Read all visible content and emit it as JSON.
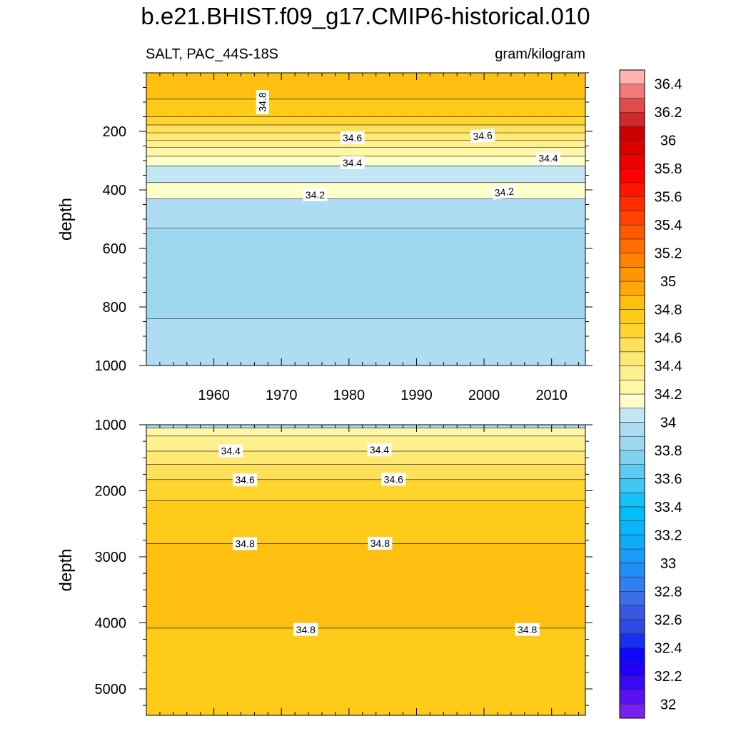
{
  "chart_data": {
    "type": "heatmap",
    "title": "b.e21.BHIST.f09_g17.CMIP6-historical.010",
    "left_subtitle": "SALT, PAC_44S-18S",
    "right_subtitle": "gram/kilogram",
    "ylabel": "depth",
    "xlim": [
      1950,
      2015
    ],
    "x_ticks": [
      1960,
      1970,
      1980,
      1990,
      2000,
      2010
    ],
    "x_tick_labels": [
      "1960",
      "1970",
      "1980",
      "1990",
      "2000",
      "2010"
    ],
    "panels": [
      {
        "name": "upper",
        "ylim": [
          0,
          1000
        ],
        "y_ticks": [
          200,
          400,
          600,
          800,
          1000
        ],
        "y_tick_labels": [
          "200",
          "400",
          "600",
          "800",
          "1000"
        ],
        "bands": [
          {
            "top": 0,
            "bottom": 90,
            "value": 34.9
          },
          {
            "top": 90,
            "bottom": 150,
            "value": 34.8
          },
          {
            "top": 150,
            "bottom": 178,
            "value": 34.7
          },
          {
            "top": 178,
            "bottom": 205,
            "value": 34.6
          },
          {
            "top": 205,
            "bottom": 230,
            "value": 34.5
          },
          {
            "top": 230,
            "bottom": 255,
            "value": 34.4
          },
          {
            "top": 255,
            "bottom": 285,
            "value": 34.3
          },
          {
            "top": 285,
            "bottom": 318,
            "value": 34.2
          },
          {
            "top": 318,
            "bottom": 375,
            "value": 34.1
          },
          {
            "top": 375,
            "bottom": 430,
            "value": 34.2
          },
          {
            "top": 430,
            "bottom": 530,
            "value": 34.0
          },
          {
            "top": 530,
            "bottom": 840,
            "value": 33.9
          },
          {
            "top": 840,
            "bottom": 1000,
            "value": 34.0
          }
        ],
        "contour_labels": [
          {
            "text": "34.8",
            "x": 1967.2,
            "y": 100,
            "rotate": -90
          },
          {
            "text": "34.6",
            "x": 1980.5,
            "y": 222,
            "rotate": 0
          },
          {
            "text": "34.6",
            "x": 1999.8,
            "y": 215,
            "rotate": -4
          },
          {
            "text": "34.4",
            "x": 1980.5,
            "y": 307,
            "rotate": 0
          },
          {
            "text": "34.4",
            "x": 2009.5,
            "y": 292,
            "rotate": 0
          },
          {
            "text": "34.2",
            "x": 1975.0,
            "y": 417,
            "rotate": 0
          },
          {
            "text": "34.2",
            "x": 2003.0,
            "y": 407,
            "rotate": -6
          }
        ]
      },
      {
        "name": "lower",
        "ylim": [
          1000,
          5400
        ],
        "y_ticks": [
          1000,
          2000,
          3000,
          4000,
          5000
        ],
        "y_tick_labels": [
          "1000",
          "2000",
          "3000",
          "4000",
          "5000"
        ],
        "bands": [
          {
            "top": 1000,
            "bottom": 1050,
            "value": 34.0
          },
          {
            "top": 1050,
            "bottom": 1170,
            "value": 34.3
          },
          {
            "top": 1170,
            "bottom": 1400,
            "value": 34.4
          },
          {
            "top": 1400,
            "bottom": 1600,
            "value": 34.5
          },
          {
            "top": 1600,
            "bottom": 1830,
            "value": 34.6
          },
          {
            "top": 1830,
            "bottom": 2150,
            "value": 34.7
          },
          {
            "top": 2150,
            "bottom": 2800,
            "value": 34.8
          },
          {
            "top": 2800,
            "bottom": 4080,
            "value": 34.9
          },
          {
            "top": 4080,
            "bottom": 5400,
            "value": 34.8
          }
        ],
        "contour_labels": [
          {
            "text": "34.4",
            "x": 1962.5,
            "y": 1395,
            "rotate": 0
          },
          {
            "text": "34.4",
            "x": 1984.5,
            "y": 1380,
            "rotate": 0
          },
          {
            "text": "34.6",
            "x": 1964.6,
            "y": 1835,
            "rotate": 0
          },
          {
            "text": "34.6",
            "x": 1986.6,
            "y": 1825,
            "rotate": 0
          },
          {
            "text": "34.8",
            "x": 1964.6,
            "y": 2800,
            "rotate": 0
          },
          {
            "text": "34.8",
            "x": 1984.6,
            "y": 2795,
            "rotate": 0
          },
          {
            "text": "34.8",
            "x": 1973.6,
            "y": 4100,
            "rotate": 0
          },
          {
            "text": "34.8",
            "x": 2006.4,
            "y": 4100,
            "rotate": 0
          }
        ]
      }
    ],
    "colorbar": {
      "levels": [
        32.0,
        32.1,
        32.2,
        32.3,
        32.4,
        32.5,
        32.6,
        32.7,
        32.8,
        32.9,
        33.0,
        33.1,
        33.2,
        33.3,
        33.4,
        33.5,
        33.6,
        33.7,
        33.8,
        33.9,
        34.0,
        34.1,
        34.2,
        34.3,
        34.4,
        34.5,
        34.6,
        34.7,
        34.8,
        34.9,
        35.0,
        35.1,
        35.2,
        35.3,
        35.4,
        35.5,
        35.6,
        35.7,
        35.8,
        35.9,
        36.0,
        36.1,
        36.2,
        36.3,
        36.4,
        36.5
      ],
      "colors": [
        "#7b20ee",
        "#5a10f2",
        "#3a08f5",
        "#2000f8",
        "#0d08fa",
        "#1a30f0",
        "#2c4ae6",
        "#3858e2",
        "#3a6fe8",
        "#2f80f2",
        "#1f8ff7",
        "#1a9cf8",
        "#10aafa",
        "#08b5fc",
        "#00bdfc",
        "#15c2f8",
        "#40c7f4",
        "#5dcaf2",
        "#80d0f0",
        "#9dd8f0",
        "#aedcf2",
        "#c2e6f4",
        "#ffffcc",
        "#fff6a6",
        "#fff08e",
        "#ffe974",
        "#ffe05a",
        "#ffd42c",
        "#ffcb1a",
        "#ffbf10",
        "#ffa608",
        "#ff9500",
        "#ff8200",
        "#ff6e00",
        "#ff5800",
        "#ff4200",
        "#ff2c00",
        "#ff1600",
        "#ff0000",
        "#ee0000",
        "#dd0000",
        "#cc0000",
        "#d22a2a",
        "#e04c4c",
        "#f07a7a",
        "#ffb2b2"
      ],
      "labels": [
        "32",
        "32.2",
        "32.4",
        "32.6",
        "32.8",
        "33",
        "33.2",
        "33.4",
        "33.6",
        "33.8",
        "34",
        "34.2",
        "34.4",
        "34.6",
        "34.8",
        "35",
        "35.2",
        "35.4",
        "35.6",
        "35.8",
        "36",
        "36.2",
        "36.4"
      ]
    }
  }
}
